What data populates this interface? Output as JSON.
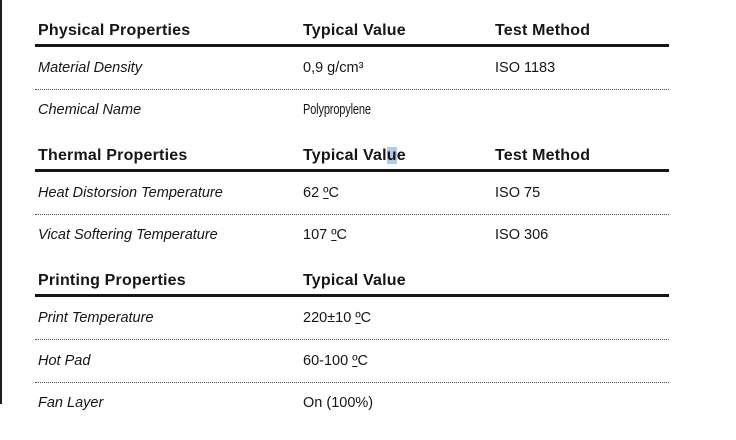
{
  "document": {
    "selection_highlight_color": "#aecbe8",
    "sections": [
      {
        "id": "physical",
        "columns": {
          "property": "Physical Properties",
          "value": "Typical Value",
          "method": "Test Method"
        },
        "rows": [
          {
            "property": "Material Density",
            "value": "0,9 g/cm³",
            "method": "ISO 1183"
          },
          {
            "property": "Chemical Name",
            "value": "Polypropylene",
            "method": ""
          }
        ]
      },
      {
        "id": "thermal",
        "columns": {
          "property": "Thermal Properties",
          "value_pre": "Typical Val",
          "value_hl": "u",
          "value_post": "e",
          "method": "Test Method"
        },
        "rows": [
          {
            "property": "Heat Distorsion Temperature",
            "value": "62 ºC",
            "method": "ISO 75"
          },
          {
            "property": "Vicat Softering Temperature",
            "value": "107 ºC",
            "method": "ISO 306"
          }
        ]
      },
      {
        "id": "printing",
        "columns": {
          "property": "Printing Properties",
          "value": "Typical Value",
          "method": ""
        },
        "rows": [
          {
            "property": "Print Temperature",
            "value": "220±10 ºC",
            "method": ""
          },
          {
            "property": "Hot Pad",
            "value": "60-100 ºC",
            "method": ""
          },
          {
            "property": "Fan Layer",
            "value": "On (100%)",
            "method": ""
          }
        ]
      }
    ]
  }
}
